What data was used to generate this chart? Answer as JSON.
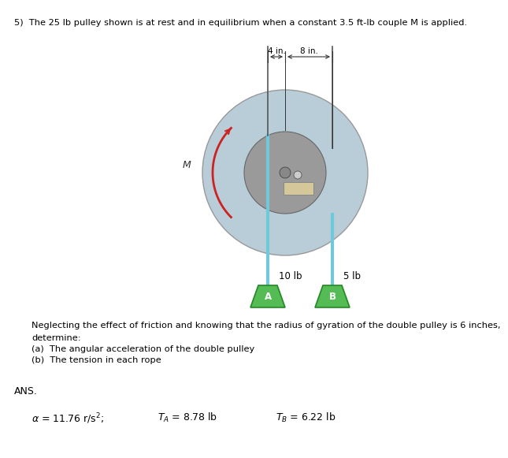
{
  "title_text": "5)  The 25 lb pulley shown is at rest and in equilibrium when a constant 3.5 ft-lb couple M is applied.",
  "problem_text": "Neglecting the effect of friction and knowing that the radius of gyration of the double pulley is 6 inches,\ndetermine:\n(a)  The angular acceleration of the double pulley\n(b)  The tension in each rope",
  "ans_label": "ANS.",
  "bg_color": "#ffffff",
  "outer_circle_color": "#b8cdd8",
  "inner_circle_color": "#9a9a9a",
  "rope_color": "#70c8d8",
  "weight_color": "#55bb55",
  "weight_edge_color": "#228822",
  "arrow_color": "#cc2222",
  "dim_line_color": "#333333",
  "rect_color": "#d4c89a",
  "hub_color": "#888888"
}
